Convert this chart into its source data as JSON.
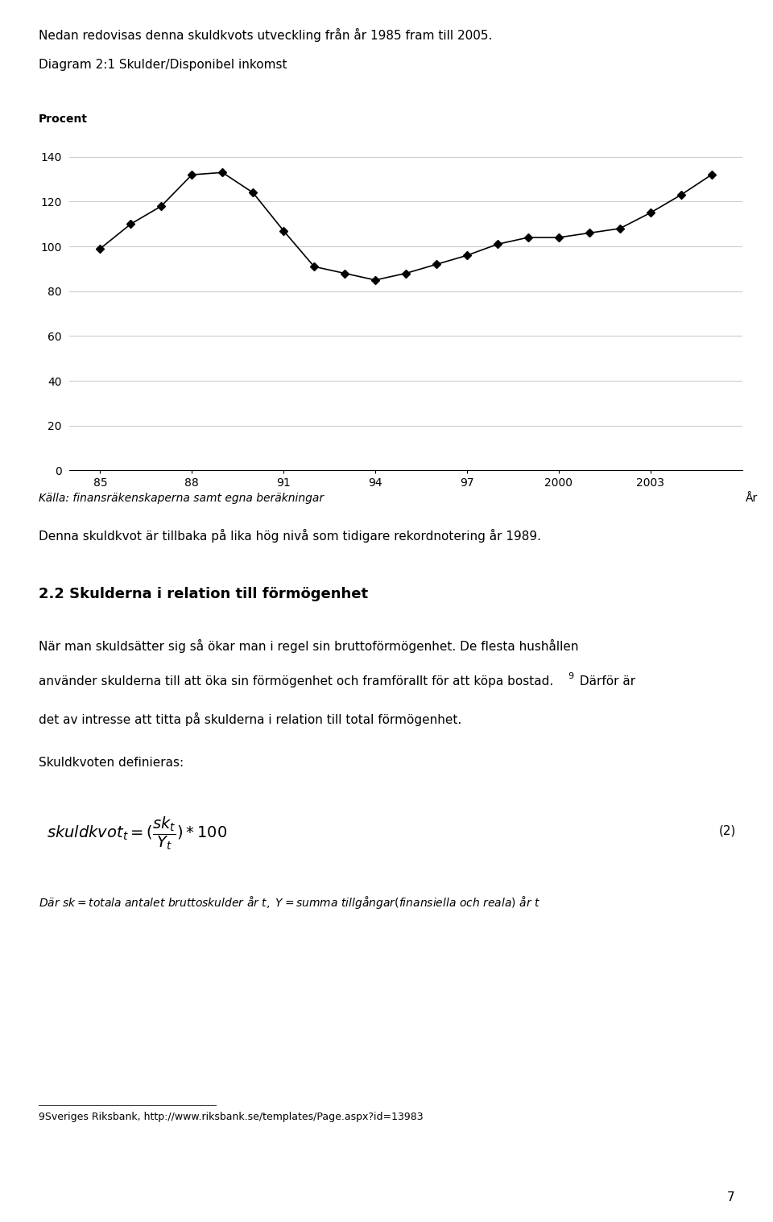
{
  "intro_text": "Nedan redovisas denna skuldkvots utveckling från år 1985 fram till 2005.",
  "diagram_title": "Diagram 2:1 Skulder/Disponibel inkomst",
  "ylabel": "Procent",
  "xlabel_label": "År",
  "xtick_labels": [
    "85",
    "88",
    "91",
    "94",
    "97",
    "2000",
    "2003"
  ],
  "xtick_values": [
    1985,
    1988,
    1991,
    1994,
    1997,
    2000,
    2003
  ],
  "ytick_values": [
    0,
    20,
    40,
    60,
    80,
    100,
    120,
    140
  ],
  "ylim": [
    0,
    150
  ],
  "xlim": [
    1984,
    2006
  ],
  "years": [
    1985,
    1986,
    1987,
    1988,
    1989,
    1990,
    1991,
    1992,
    1993,
    1994,
    1995,
    1996,
    1997,
    1998,
    1999,
    2000,
    2001,
    2002,
    2003,
    2004,
    2005
  ],
  "values": [
    99,
    110,
    118,
    132,
    133,
    124,
    107,
    91,
    88,
    85,
    88,
    92,
    96,
    101,
    104,
    104,
    106,
    108,
    115,
    123,
    132
  ],
  "line_color": "#000000",
  "marker": "D",
  "marker_size": 5,
  "source_text": "Källa: finansräkenskaperna samt egna beräkningar",
  "body_text1": "Denna skuldkvot är tillbaka på lika hög nivå som tidigare rekordnotering år 1989.",
  "section_title": "2.2 Skulderna i relation till förmögenhet",
  "body2_line1": "När man skuldsätter sig så ökar man i regel sin bruttoförmögenhet. De flesta hushållen",
  "body2_line2": "använder skulderna till att öka sin förmögenhet och framförallt för att köpa bostad.",
  "body2_sup": "9",
  "body2_line2b": " Därför är",
  "body2_line3": "det av intresse att titta på skulderna i relation till total förmögenhet.",
  "skuldkvoten_text": "Skuldkvoten definieras:",
  "formula_label": "(2)",
  "footnote_number": "9",
  "footnote_text": "Sveriges Riksbank, http://www.riksbank.se/templates/Page.aspx?id=13983",
  "page_number": "7",
  "background_color": "#ffffff",
  "text_color": "#000000",
  "grid_color": "#cccccc"
}
